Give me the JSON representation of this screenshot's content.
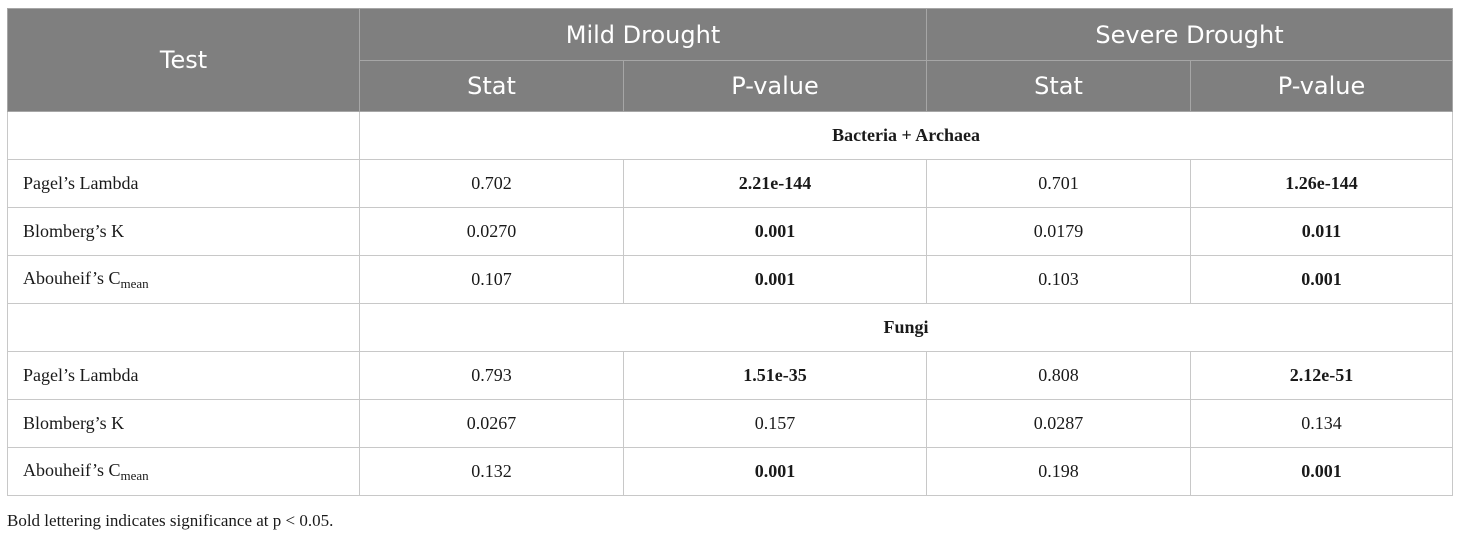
{
  "header": {
    "test": "Test",
    "groups": [
      "Mild Drought",
      "Severe Drought"
    ],
    "subcols": [
      "Stat",
      "P-value",
      "Stat",
      "P-value"
    ]
  },
  "sections": [
    {
      "title": "Bacteria + Archaea",
      "rows": [
        {
          "label": "Pagel’s Lambda",
          "label_sub": "",
          "values": [
            "0.702",
            "2.21e-144",
            "0.701",
            "1.26e-144"
          ],
          "bold": [
            false,
            true,
            false,
            true
          ]
        },
        {
          "label": "Blomberg’s K",
          "label_sub": "",
          "values": [
            "0.0270",
            "0.001",
            "0.0179",
            "0.011"
          ],
          "bold": [
            false,
            true,
            false,
            true
          ]
        },
        {
          "label": "Abouheif’s C",
          "label_sub": "mean",
          "values": [
            "0.107",
            "0.001",
            "0.103",
            "0.001"
          ],
          "bold": [
            false,
            true,
            false,
            true
          ]
        }
      ]
    },
    {
      "title": "Fungi",
      "rows": [
        {
          "label": "Pagel’s Lambda",
          "label_sub": "",
          "values": [
            "0.793",
            "1.51e-35",
            "0.808",
            "2.12e-51"
          ],
          "bold": [
            false,
            true,
            false,
            true
          ]
        },
        {
          "label": "Blomberg’s K",
          "label_sub": "",
          "values": [
            "0.0267",
            "0.157",
            "0.0287",
            "0.134"
          ],
          "bold": [
            false,
            false,
            false,
            false
          ]
        },
        {
          "label": "Abouheif’s C",
          "label_sub": "mean",
          "values": [
            "0.132",
            "0.001",
            "0.198",
            "0.001"
          ],
          "bold": [
            false,
            true,
            false,
            true
          ]
        }
      ]
    }
  ],
  "footnote": "Bold lettering indicates significance at p < 0.05.",
  "colors": {
    "header_bg": "#7f7f7f",
    "header_text": "#ffffff",
    "border": "#c8c8c8",
    "text": "#1a1a1a"
  }
}
